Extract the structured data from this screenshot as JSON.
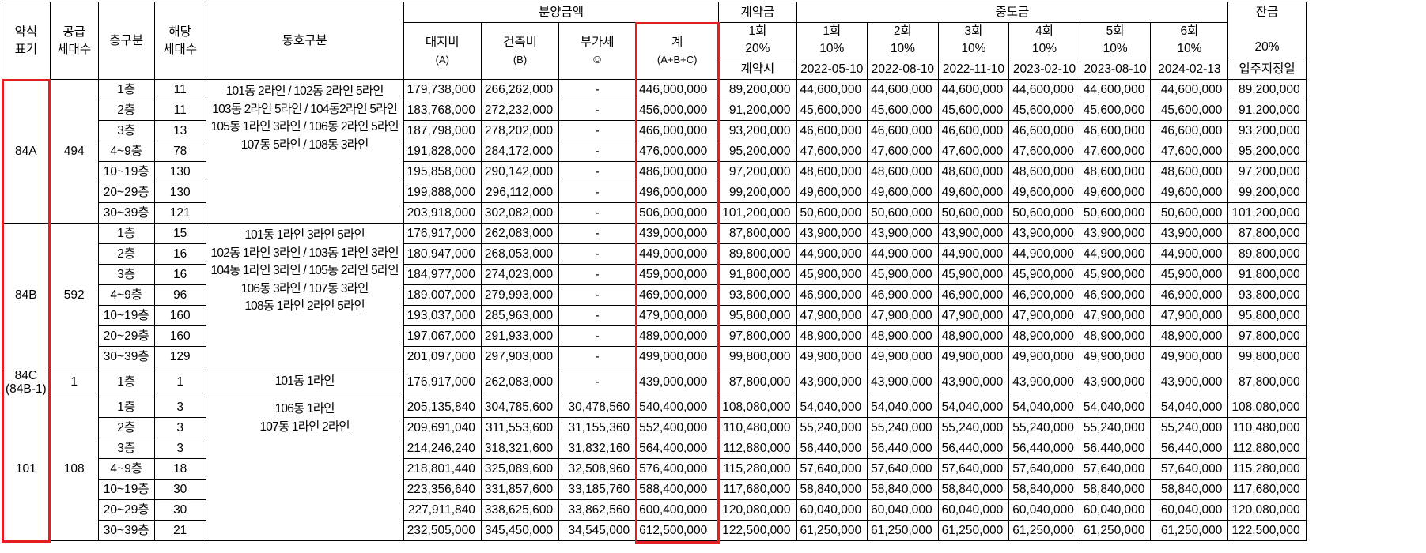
{
  "headers": {
    "abbr": [
      "약식",
      "표기"
    ],
    "supply": [
      "공급",
      "세대수"
    ],
    "floor": "층구분",
    "units": [
      "해당",
      "세대수"
    ],
    "dong": "동호구분",
    "price_group": "분양금액",
    "land": [
      "대지비",
      "(A)"
    ],
    "build": [
      "건축비",
      "(B)"
    ],
    "vat": [
      "부가세",
      "©"
    ],
    "total": [
      "계",
      "(A+B+C)"
    ],
    "contract_group": "계약금",
    "contract": [
      "1회",
      "20%",
      "계약시"
    ],
    "mid_group": "중도금",
    "mid": [
      [
        "1회",
        "10%",
        "2022-05-10"
      ],
      [
        "2회",
        "10%",
        "2022-08-10"
      ],
      [
        "3회",
        "10%",
        "2022-11-10"
      ],
      [
        "4회",
        "10%",
        "2023-02-10"
      ],
      [
        "5회",
        "10%",
        "2023-08-10"
      ],
      [
        "6회",
        "10%",
        "2024-02-13"
      ]
    ],
    "balance": [
      "잔금",
      "20%",
      "입주지정일"
    ]
  },
  "groups": [
    {
      "type": "84A",
      "supply": "494",
      "dong_lines": [
        "101동 2라인 / 102동 2라인 5라인",
        "103동 2라인 5라인 / 104동2라인 5라인",
        "105동 1라인 3라인 / 106동 2라인 5라인",
        "107동 5라인 / 108동 3라인"
      ],
      "rows": [
        {
          "floor": "1층",
          "units": "11",
          "land": "179,738,000",
          "build": "266,262,000",
          "vat": "-",
          "total": "446,000,000",
          "contract": "89,200,000",
          "mid": "44,600,000",
          "balance": "89,200,000"
        },
        {
          "floor": "2층",
          "units": "11",
          "land": "183,768,000",
          "build": "272,232,000",
          "vat": "-",
          "total": "456,000,000",
          "contract": "91,200,000",
          "mid": "45,600,000",
          "balance": "91,200,000"
        },
        {
          "floor": "3층",
          "units": "13",
          "land": "187,798,000",
          "build": "278,202,000",
          "vat": "-",
          "total": "466,000,000",
          "contract": "93,200,000",
          "mid": "46,600,000",
          "balance": "93,200,000"
        },
        {
          "floor": "4~9층",
          "units": "78",
          "land": "191,828,000",
          "build": "284,172,000",
          "vat": "-",
          "total": "476,000,000",
          "contract": "95,200,000",
          "mid": "47,600,000",
          "balance": "95,200,000"
        },
        {
          "floor": "10~19층",
          "units": "130",
          "land": "195,858,000",
          "build": "290,142,000",
          "vat": "-",
          "total": "486,000,000",
          "contract": "97,200,000",
          "mid": "48,600,000",
          "balance": "97,200,000"
        },
        {
          "floor": "20~29층",
          "units": "130",
          "land": "199,888,000",
          "build": "296,112,000",
          "vat": "-",
          "total": "496,000,000",
          "contract": "99,200,000",
          "mid": "49,600,000",
          "balance": "99,200,000"
        },
        {
          "floor": "30~39층",
          "units": "121",
          "land": "203,918,000",
          "build": "302,082,000",
          "vat": "-",
          "total": "506,000,000",
          "contract": "101,200,000",
          "mid": "50,600,000",
          "balance": "101,200,000"
        }
      ]
    },
    {
      "type": "84B",
      "supply": "592",
      "dong_lines": [
        "101동 1라인 3라인 5라인",
        "102동 1라인 3라인 / 103동 1라인 3라인",
        "104동 1라인 3라인 / 105동 2라인 5라인",
        "106동 3라인 / 107동 3라인",
        "108동 1라인 2라인 5라인"
      ],
      "rows": [
        {
          "floor": "1층",
          "units": "15",
          "land": "176,917,000",
          "build": "262,083,000",
          "vat": "-",
          "total": "439,000,000",
          "contract": "87,800,000",
          "mid": "43,900,000",
          "balance": "87,800,000"
        },
        {
          "floor": "2층",
          "units": "16",
          "land": "180,947,000",
          "build": "268,053,000",
          "vat": "-",
          "total": "449,000,000",
          "contract": "89,800,000",
          "mid": "44,900,000",
          "balance": "89,800,000"
        },
        {
          "floor": "3층",
          "units": "16",
          "land": "184,977,000",
          "build": "274,023,000",
          "vat": "-",
          "total": "459,000,000",
          "contract": "91,800,000",
          "mid": "45,900,000",
          "balance": "91,800,000"
        },
        {
          "floor": "4~9층",
          "units": "96",
          "land": "189,007,000",
          "build": "279,993,000",
          "vat": "-",
          "total": "469,000,000",
          "contract": "93,800,000",
          "mid": "46,900,000",
          "balance": "93,800,000"
        },
        {
          "floor": "10~19층",
          "units": "160",
          "land": "193,037,000",
          "build": "285,963,000",
          "vat": "-",
          "total": "479,000,000",
          "contract": "95,800,000",
          "mid": "47,900,000",
          "balance": "95,800,000"
        },
        {
          "floor": "20~29층",
          "units": "160",
          "land": "197,067,000",
          "build": "291,933,000",
          "vat": "-",
          "total": "489,000,000",
          "contract": "97,800,000",
          "mid": "48,900,000",
          "balance": "97,800,000"
        },
        {
          "floor": "30~39층",
          "units": "129",
          "land": "201,097,000",
          "build": "297,903,000",
          "vat": "-",
          "total": "499,000,000",
          "contract": "99,800,000",
          "mid": "49,900,000",
          "balance": "99,800,000"
        }
      ]
    },
    {
      "type": "84C",
      "type_sub": "(84B-1)",
      "supply": "1",
      "tall": true,
      "dong_lines": [
        "101동 1라인"
      ],
      "rows": [
        {
          "floor": "1층",
          "units": "1",
          "land": "176,917,000",
          "build": "262,083,000",
          "vat": "-",
          "total": "439,000,000",
          "contract": "87,800,000",
          "mid": "43,900,000",
          "balance": "87,800,000"
        }
      ]
    },
    {
      "type": "101",
      "supply": "108",
      "dong_lines": [
        "106동 1라인",
        "107동 1라인 2라인"
      ],
      "rows": [
        {
          "floor": "1층",
          "units": "3",
          "land": "205,135,840",
          "build": "304,785,600",
          "vat": "30,478,560",
          "total": "540,400,000",
          "contract": "108,080,000",
          "mid": "54,040,000",
          "balance": "108,080,000"
        },
        {
          "floor": "2층",
          "units": "3",
          "land": "209,691,040",
          "build": "311,553,600",
          "vat": "31,155,360",
          "total": "552,400,000",
          "contract": "110,480,000",
          "mid": "55,240,000",
          "balance": "110,480,000"
        },
        {
          "floor": "3층",
          "units": "3",
          "land": "214,246,240",
          "build": "318,321,600",
          "vat": "31,832,160",
          "total": "564,400,000",
          "contract": "112,880,000",
          "mid": "56,440,000",
          "balance": "112,880,000"
        },
        {
          "floor": "4~9층",
          "units": "18",
          "land": "218,801,440",
          "build": "325,089,600",
          "vat": "32,508,960",
          "total": "576,400,000",
          "contract": "115,280,000",
          "mid": "57,640,000",
          "balance": "115,280,000"
        },
        {
          "floor": "10~19층",
          "units": "30",
          "land": "223,356,640",
          "build": "331,857,600",
          "vat": "33,185,760",
          "total": "588,400,000",
          "contract": "117,680,000",
          "mid": "58,840,000",
          "balance": "117,680,000"
        },
        {
          "floor": "20~29층",
          "units": "30",
          "land": "227,911,840",
          "build": "338,625,600",
          "vat": "33,862,560",
          "total": "600,400,000",
          "contract": "120,080,000",
          "mid": "60,040,000",
          "balance": "120,080,000"
        },
        {
          "floor": "30~39층",
          "units": "21",
          "land": "232,505,000",
          "build": "345,450,000",
          "vat": "34,545,000",
          "total": "612,500,000",
          "contract": "122,500,000",
          "mid": "61,250,000",
          "balance": "122,500,000"
        }
      ]
    }
  ],
  "highlight_color": "#e41e25"
}
